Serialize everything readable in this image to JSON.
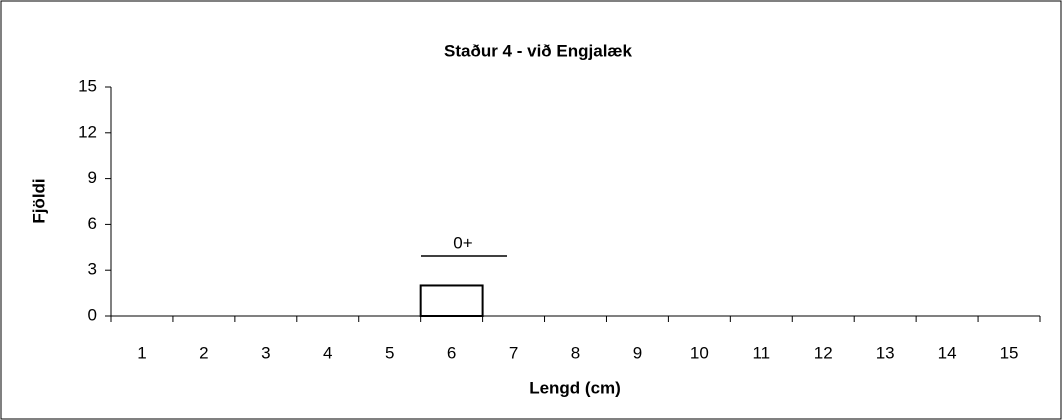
{
  "chart_data": {
    "type": "bar",
    "title": "Staður 4 - við Engjalæk",
    "x_label": "Lengd (cm)",
    "y_label": "Fjöldi",
    "categories": [
      "1",
      "2",
      "3",
      "4",
      "5",
      "6",
      "7",
      "8",
      "9",
      "10",
      "11",
      "12",
      "13",
      "14",
      "15"
    ],
    "values": [
      0,
      0,
      0,
      0,
      0,
      2,
      0,
      0,
      0,
      0,
      0,
      0,
      0,
      0,
      0
    ],
    "color": "#ffffff",
    "edge_color": "#000000",
    "ylim": [
      0,
      15
    ],
    "yticks": [
      0,
      3,
      6,
      9,
      12,
      15
    ],
    "grid": false,
    "annotation": "0+"
  }
}
